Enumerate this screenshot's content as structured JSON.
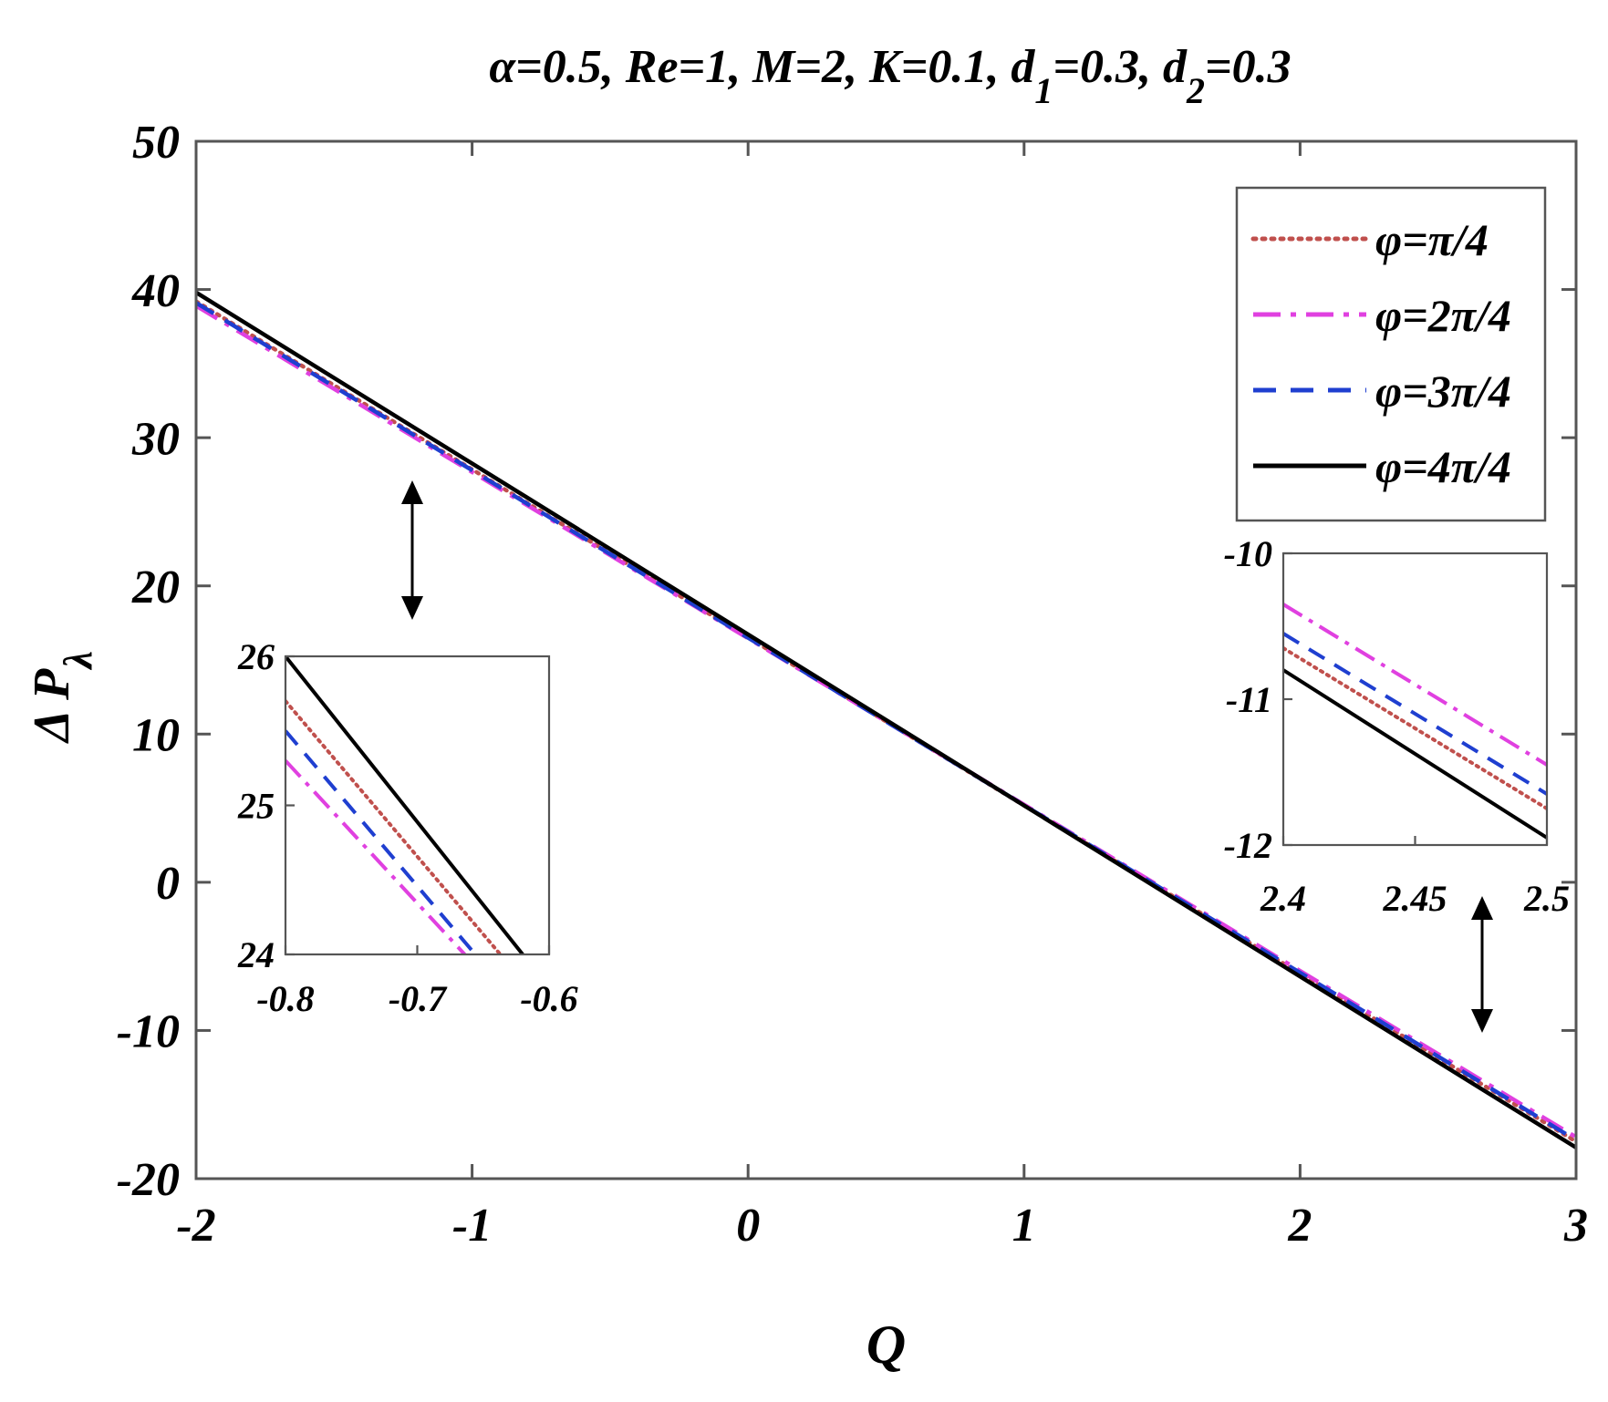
{
  "chart_data": [
    {
      "type": "line",
      "title": "α=0.5, Re=1, M=2, K=0.1, d1=0.3, d2=0.3",
      "title_parts": [
        {
          "text": "α=0.5, Re=1, M=2, K=0.1, d"
        },
        {
          "text": "1",
          "sub": true
        },
        {
          "text": "=0.3, d"
        },
        {
          "text": "2",
          "sub": true
        },
        {
          "text": "=0.3"
        }
      ],
      "xlabel": "Q",
      "ylabel": "Δ P",
      "ylabel_sub": "λ",
      "xlim": [
        -2,
        3
      ],
      "ylim": [
        -20,
        50
      ],
      "xticks": [
        -2,
        -1,
        0,
        1,
        2,
        3
      ],
      "yticks": [
        -20,
        -10,
        0,
        10,
        20,
        30,
        40,
        50
      ],
      "grid": false,
      "legend_position": "top-right",
      "series": [
        {
          "name": "φ=π/4",
          "color": "#c0504d",
          "style": "dotted",
          "x": [
            -2,
            3
          ],
          "y": [
            39.2,
            -17.5
          ]
        },
        {
          "name": "φ=2π/4",
          "color": "#e040e0",
          "style": "dashdot",
          "x": [
            -2,
            3
          ],
          "y": [
            38.9,
            -17.2
          ]
        },
        {
          "name": "φ=3π/4",
          "color": "#1f3fd0",
          "style": "dashed",
          "x": [
            -2,
            3
          ],
          "y": [
            39.1,
            -17.4
          ]
        },
        {
          "name": "φ=4π/4",
          "color": "#000000",
          "style": "solid",
          "x": [
            -2,
            3
          ],
          "y": [
            39.8,
            -17.9
          ]
        }
      ],
      "annotations": [
        "double-arrow-icon near Q=-1.2",
        "double-arrow-icon near Q=2.65"
      ]
    },
    {
      "type": "line",
      "role": "inset-left",
      "xlim": [
        -0.8,
        -0.6
      ],
      "ylim": [
        24,
        26
      ],
      "xticks": [
        -0.8,
        -0.7,
        -0.6
      ],
      "xtick_labels": [
        "-0.8",
        "-0.7",
        "-0.6"
      ],
      "yticks": [
        24,
        25,
        26
      ],
      "series": [
        {
          "name": "φ=π/4",
          "color": "#c0504d",
          "style": "dotted",
          "x": [
            -0.8,
            -0.637
          ],
          "y": [
            25.7,
            24
          ]
        },
        {
          "name": "φ=2π/4",
          "color": "#e040e0",
          "style": "dashdot",
          "x": [
            -0.8,
            -0.664
          ],
          "y": [
            25.3,
            24
          ]
        },
        {
          "name": "φ=3π/4",
          "color": "#1f3fd0",
          "style": "dashed",
          "x": [
            -0.8,
            -0.656
          ],
          "y": [
            25.5,
            24
          ]
        },
        {
          "name": "φ=4π/4",
          "color": "#000000",
          "style": "solid",
          "x": [
            -0.8,
            -0.62
          ],
          "y": [
            26.0,
            24
          ]
        }
      ]
    },
    {
      "type": "line",
      "role": "inset-right",
      "xlim": [
        2.4,
        2.5
      ],
      "ylim": [
        -12,
        -10
      ],
      "xticks": [
        2.4,
        2.45,
        2.5
      ],
      "xtick_labels": [
        "2.4",
        "2.45",
        "2.5"
      ],
      "yticks": [
        -12,
        -11,
        -10
      ],
      "series": [
        {
          "name": "φ=π/4",
          "color": "#c0504d",
          "style": "dotted",
          "x": [
            2.4,
            2.5
          ],
          "y": [
            -10.65,
            -11.75
          ]
        },
        {
          "name": "φ=2π/4",
          "color": "#e040e0",
          "style": "dashdot",
          "x": [
            2.4,
            2.5
          ],
          "y": [
            -10.35,
            -11.45
          ]
        },
        {
          "name": "φ=3π/4",
          "color": "#1f3fd0",
          "style": "dashed",
          "x": [
            2.4,
            2.5
          ],
          "y": [
            -10.55,
            -11.65
          ]
        },
        {
          "name": "φ=4π/4",
          "color": "#000000",
          "style": "solid",
          "x": [
            2.4,
            2.5
          ],
          "y": [
            -10.8,
            -11.95
          ]
        }
      ]
    }
  ]
}
